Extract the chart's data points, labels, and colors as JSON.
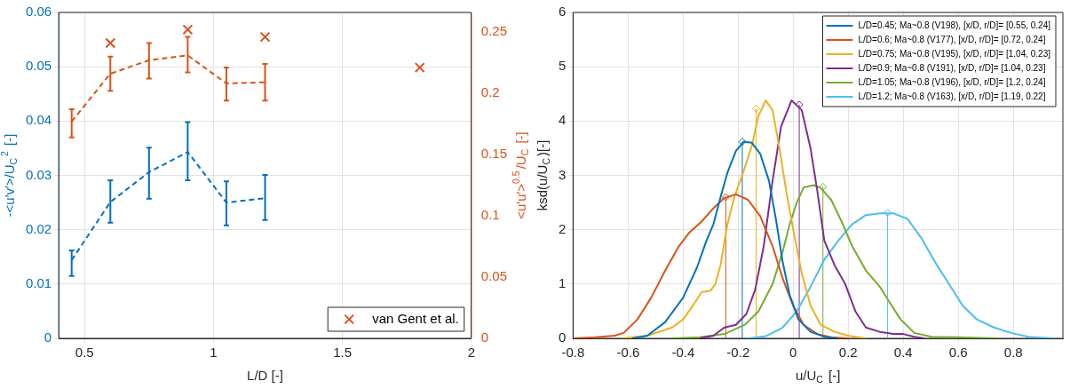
{
  "chart_data": [
    {
      "type": "line",
      "xlabel": "L/D [-]",
      "ylabel": "-<u′v′>/U$_{C}$$^{2}$ [-]",
      "y2label": "<u′u′>$^{0.5}$/U$_{C}$ [-]",
      "xlim": [
        0.4,
        2
      ],
      "xticks": [
        0.5,
        1,
        1.5,
        2
      ],
      "ylim": [
        0,
        0.06
      ],
      "yticks": [
        0,
        0.01,
        0.02,
        0.03,
        0.04,
        0.05,
        0.06
      ],
      "y2lim": [
        0,
        0.266
      ],
      "y2ticks": [
        0,
        0.05,
        0.1,
        0.15,
        0.2,
        0.25
      ],
      "grid": true,
      "legend": "bottom right",
      "series": [
        {
          "color": "#0072bd",
          "x": [
            0.45,
            0.6,
            0.75,
            0.9,
            1.05,
            1.2
          ],
          "values": [
            0.0144,
            0.0251,
            0.0306,
            0.0343,
            0.025,
            0.0258
          ],
          "errors": [
            [
              0.0115,
              0.0162
            ],
            [
              0.0213,
              0.0291
            ],
            [
              0.0257,
              0.0351
            ],
            [
              0.0291,
              0.0398
            ],
            [
              0.0208,
              0.0289
            ],
            [
              0.0218,
              0.0301
            ]
          ],
          "line_style": "dashed",
          "marker": "none"
        },
        {
          "color": "#d95319",
          "axis": "y2",
          "x": [
            0.45,
            0.6,
            0.75,
            0.9,
            1.05,
            1.2
          ],
          "values": [
            0.177,
            0.216,
            0.227,
            0.231,
            0.208,
            0.209
          ],
          "errors": [
            [
              0.164,
              0.187
            ],
            [
              0.202,
              0.23
            ],
            [
              0.212,
              0.241
            ],
            [
              0.217,
              0.246
            ],
            [
              0.194,
              0.221
            ],
            [
              0.194,
              0.224
            ]
          ],
          "line_style": "dashed",
          "marker": "none"
        },
        {
          "type": "scatter",
          "name": "van Gent et al.",
          "color": "#d95319",
          "axis": "y2",
          "x": [
            0.6,
            0.9,
            1.2,
            1.8
          ],
          "values": [
            0.241,
            0.252,
            0.246,
            0.221
          ],
          "marker": "cross"
        }
      ]
    },
    {
      "type": "line",
      "xlabel": "u/U$_{C}$ [-]",
      "ylabel": "ksd(u/U$_{C}$)[-]",
      "xlim": [
        -0.8,
        0.98
      ],
      "xticks": [
        -0.8,
        -0.6,
        -0.4,
        -0.2,
        0,
        0.2,
        0.4,
        0.6,
        0.8
      ],
      "ylim": [
        0,
        6
      ],
      "yticks": [
        0,
        1,
        2,
        3,
        4,
        5,
        6
      ],
      "grid": true,
      "legend": "top right",
      "series": [
        {
          "name": "L/D=0.45; Ma~0.8 (V198), [x/D, r/D]= [0.55, 0.24]",
          "color": "#0072bd",
          "x": [
            -0.585,
            -0.53,
            -0.465,
            -0.4,
            -0.35,
            -0.315,
            -0.29,
            -0.264,
            -0.239,
            -0.208,
            -0.18,
            -0.15,
            -0.12,
            -0.088,
            -0.063,
            -0.038,
            -0.013,
            0.019,
            0.063,
            0.113,
            0.16
          ],
          "values": [
            0,
            0.05,
            0.3,
            0.75,
            1.3,
            1.8,
            2.1,
            2.6,
            3.05,
            3.45,
            3.62,
            3.6,
            3.4,
            2.9,
            2.2,
            1.4,
            0.8,
            0.35,
            0.12,
            0.03,
            0
          ]
        },
        {
          "name": "L/D=0.6; Ma~0.8 (V177), [x/D, r/D]= [0.72, 0.24]",
          "color": "#d95319",
          "x": [
            -0.8,
            -0.72,
            -0.65,
            -0.616,
            -0.566,
            -0.516,
            -0.465,
            -0.415,
            -0.377,
            -0.333,
            -0.289,
            -0.252,
            -0.208,
            -0.164,
            -0.12,
            -0.075,
            -0.038,
            0,
            0.038,
            0.088,
            0.138,
            0.2
          ],
          "values": [
            0,
            0.02,
            0.05,
            0.1,
            0.35,
            0.75,
            1.25,
            1.7,
            1.95,
            2.15,
            2.4,
            2.58,
            2.65,
            2.55,
            2.25,
            1.7,
            1.1,
            0.6,
            0.25,
            0.08,
            0.02,
            0
          ]
        },
        {
          "name": "L/D=0.75; Ma~0.8 (V195), [x/D, r/D]= [1.04, 0.23]",
          "color": "#edb120",
          "x": [
            -0.62,
            -0.53,
            -0.44,
            -0.4,
            -0.365,
            -0.333,
            -0.3,
            -0.283,
            -0.264,
            -0.239,
            -0.214,
            -0.182,
            -0.15,
            -0.126,
            -0.1,
            -0.075,
            -0.05,
            -0.025,
            0,
            0.031,
            0.063,
            0.1,
            0.15,
            0.2,
            0.264
          ],
          "values": [
            0,
            0.05,
            0.2,
            0.35,
            0.6,
            0.85,
            0.88,
            1,
            1.35,
            2.1,
            2.6,
            3.05,
            3.55,
            4.1,
            4.38,
            4.2,
            3.5,
            2.7,
            2,
            1.2,
            0.6,
            0.25,
            0.12,
            0.05,
            0
          ]
        },
        {
          "name": "L/D=0.9; Ma~0.8 (V191), [x/D, r/D]= [1.04, 0.23]",
          "color": "#7e2f8e",
          "x": [
            -0.34,
            -0.29,
            -0.25,
            -0.208,
            -0.17,
            -0.138,
            -0.107,
            -0.075,
            -0.044,
            -0.006,
            0.031,
            0.063,
            0.088,
            0.113,
            0.15,
            0.189,
            0.226,
            0.264,
            0.315,
            0.365,
            0.4,
            0.44,
            0.478
          ],
          "values": [
            0,
            0.05,
            0.2,
            0.25,
            0.45,
            0.9,
            1.7,
            2.9,
            3.9,
            4.38,
            4.2,
            3.5,
            2.7,
            1.8,
            1.35,
            1,
            0.5,
            0.2,
            0.12,
            0.08,
            0.08,
            0.03,
            0
          ]
        },
        {
          "name": "L/D=1.05; Ma~0.8 (V196), [x/D, r/D]= [1.2, 0.24]",
          "color": "#77ac30",
          "x": [
            -0.44,
            -0.34,
            -0.25,
            -0.176,
            -0.126,
            -0.075,
            -0.038,
            -0.013,
            0.013,
            0.038,
            0.075,
            0.1,
            0.138,
            0.176,
            0.214,
            0.264,
            0.315,
            0.352,
            0.39,
            0.44,
            0.503,
            0.604,
            0.742
          ],
          "values": [
            0,
            0.02,
            0.08,
            0.25,
            0.5,
            1,
            1.6,
            2.1,
            2.5,
            2.78,
            2.82,
            2.77,
            2.55,
            2.15,
            1.7,
            1.25,
            0.95,
            0.65,
            0.35,
            0.1,
            0.03,
            0.02,
            0
          ]
        },
        {
          "name": "L/D=1.2; Ma~0.8 (V163), [x/D, r/D]= [1.19, 0.22]",
          "color": "#4dbeee",
          "x": [
            -0.164,
            -0.1,
            -0.038,
            0.013,
            0.063,
            0.113,
            0.164,
            0.214,
            0.264,
            0.315,
            0.365,
            0.415,
            0.465,
            0.516,
            0.566,
            0.616,
            0.667,
            0.73,
            0.792,
            0.855,
            0.95
          ],
          "values": [
            0,
            0.04,
            0.2,
            0.5,
            0.95,
            1.45,
            1.8,
            2.1,
            2.27,
            2.3,
            2.3,
            2.2,
            1.85,
            1.4,
            1,
            0.6,
            0.35,
            0.2,
            0.1,
            0.03,
            0
          ]
        },
        {
          "type": "lollipop",
          "marker": "diamond",
          "x": [
            -0.185,
            -0.245,
            -0.135,
            0.022,
            0.108,
            0.343
          ],
          "values": [
            3.62,
            2.6,
            4.23,
            4.3,
            2.79,
            2.31
          ],
          "colors": [
            "#0072bd",
            "#d95319",
            "#edb120",
            "#7e2f8e",
            "#77ac30",
            "#4dbeee"
          ]
        }
      ]
    }
  ]
}
